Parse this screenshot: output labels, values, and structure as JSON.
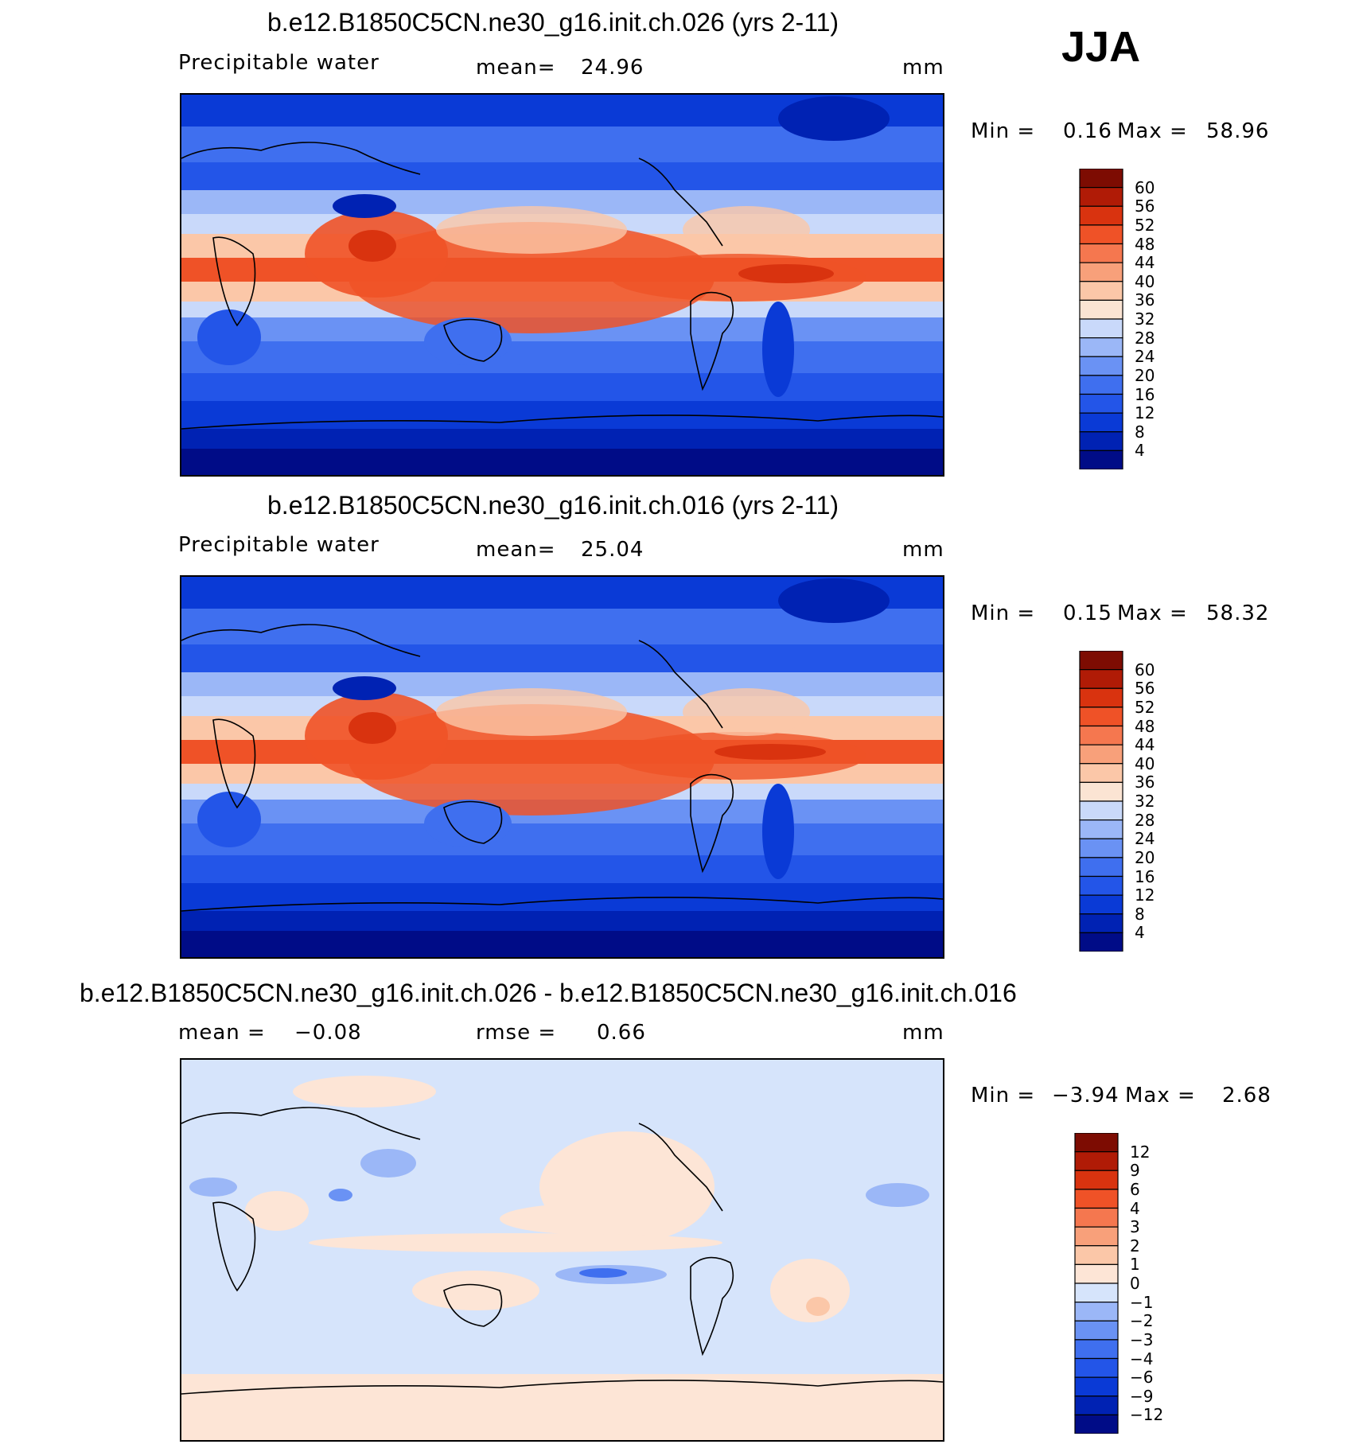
{
  "season": "JJA",
  "panels": [
    {
      "id": "p1",
      "title": "b.e12.B1850C5CN.ne30_g16.init.ch.026 (yrs 2-11)",
      "left_label": "Precipitable water",
      "mean_label": "mean=",
      "mean_value": "24.96",
      "unit": "mm",
      "minmax": {
        "min_label": "Min =",
        "min": "0.16",
        "max_label": "Max =",
        "max": "58.96"
      },
      "colorbar": [
        "60",
        "56",
        "52",
        "48",
        "44",
        "40",
        "36",
        "32",
        "28",
        "24",
        "20",
        "16",
        "12",
        "8",
        "4"
      ]
    },
    {
      "id": "p2",
      "title": "b.e12.B1850C5CN.ne30_g16.init.ch.016 (yrs 2-11)",
      "left_label": "Precipitable water",
      "mean_label": "mean=",
      "mean_value": "25.04",
      "unit": "mm",
      "minmax": {
        "min_label": "Min =",
        "min": "0.15",
        "max_label": "Max =",
        "max": "58.32"
      },
      "colorbar": [
        "60",
        "56",
        "52",
        "48",
        "44",
        "40",
        "36",
        "32",
        "28",
        "24",
        "20",
        "16",
        "12",
        "8",
        "4"
      ]
    },
    {
      "id": "p3",
      "title": "b.e12.B1850C5CN.ne30_g16.init.ch.026 - b.e12.B1850C5CN.ne30_g16.init.ch.016",
      "left_label": "mean =",
      "left_value": "−0.08",
      "mean_label": "rmse =",
      "mean_value": "0.66",
      "unit": "mm",
      "minmax": {
        "min_label": "Min =",
        "min": "−3.94",
        "max_label": "Max =",
        "max": "2.68"
      },
      "colorbar": [
        "12",
        "9",
        "6",
        "4",
        "3",
        "2",
        "1",
        "0",
        "−1",
        "−2",
        "−3",
        "−4",
        "−6",
        "−9",
        "−12"
      ]
    }
  ],
  "chart_data": [
    {
      "type": "heatmap",
      "title": "b.e12.B1850C5CN.ne30_g16.init.ch.026 (yrs 2-11)",
      "variable": "Precipitable water",
      "units": "mm",
      "mean": 24.96,
      "min": 0.16,
      "max": 58.96,
      "contour_levels": [
        4,
        8,
        12,
        16,
        20,
        24,
        28,
        32,
        36,
        40,
        44,
        48,
        52,
        56,
        60
      ],
      "colormap": [
        "#000c87",
        "#0022b3",
        "#0a3ad6",
        "#2355e8",
        "#3f6fef",
        "#6a92f4",
        "#9bb7f7",
        "#c9d9fa",
        "#fbe4d3",
        "#fbc7a8",
        "#f8a07a",
        "#f5774f",
        "#ef5227",
        "#d9330f",
        "#b01b06",
        "#7d0c02"
      ]
    },
    {
      "type": "heatmap",
      "title": "b.e12.B1850C5CN.ne30_g16.init.ch.016 (yrs 2-11)",
      "variable": "Precipitable water",
      "units": "mm",
      "mean": 25.04,
      "min": 0.15,
      "max": 58.32,
      "contour_levels": [
        4,
        8,
        12,
        16,
        20,
        24,
        28,
        32,
        36,
        40,
        44,
        48,
        52,
        56,
        60
      ],
      "colormap": [
        "#000c87",
        "#0022b3",
        "#0a3ad6",
        "#2355e8",
        "#3f6fef",
        "#6a92f4",
        "#9bb7f7",
        "#c9d9fa",
        "#fbe4d3",
        "#fbc7a8",
        "#f8a07a",
        "#f5774f",
        "#ef5227",
        "#d9330f",
        "#b01b06",
        "#7d0c02"
      ]
    },
    {
      "type": "heatmap",
      "title": "b.e12.B1850C5CN.ne30_g16.init.ch.026 - b.e12.B1850C5CN.ne30_g16.init.ch.016",
      "units": "mm",
      "mean": -0.08,
      "rmse": 0.66,
      "min": -3.94,
      "max": 2.68,
      "contour_levels": [
        -12,
        -9,
        -6,
        -4,
        -3,
        -2,
        -1,
        0,
        1,
        2,
        3,
        4,
        6,
        9,
        12
      ],
      "colormap": [
        "#000c87",
        "#0022b3",
        "#0a3ad6",
        "#2355e8",
        "#3f6fef",
        "#6a92f4",
        "#9bb7f7",
        "#d6e4fb",
        "#fde5d6",
        "#fbc7a8",
        "#f8a07a",
        "#f5774f",
        "#ef5227",
        "#d9330f",
        "#b01b06",
        "#7d0c02"
      ]
    }
  ],
  "colorbar_fills_abs": [
    "#7d0c02",
    "#b01b06",
    "#d9330f",
    "#ef5227",
    "#f5774f",
    "#f8a07a",
    "#fbc7a8",
    "#fbe4d3",
    "#c9d9fa",
    "#9bb7f7",
    "#6a92f4",
    "#3f6fef",
    "#2355e8",
    "#0a3ad6",
    "#0022b3",
    "#000c87"
  ],
  "colorbar_fills_diff": [
    "#7d0c02",
    "#b01b06",
    "#d9330f",
    "#ef5227",
    "#f5774f",
    "#f8a07a",
    "#fbc7a8",
    "#fde5d6",
    "#d6e4fb",
    "#9bb7f7",
    "#6a92f4",
    "#3f6fef",
    "#2355e8",
    "#0a3ad6",
    "#0022b3",
    "#000c87"
  ]
}
